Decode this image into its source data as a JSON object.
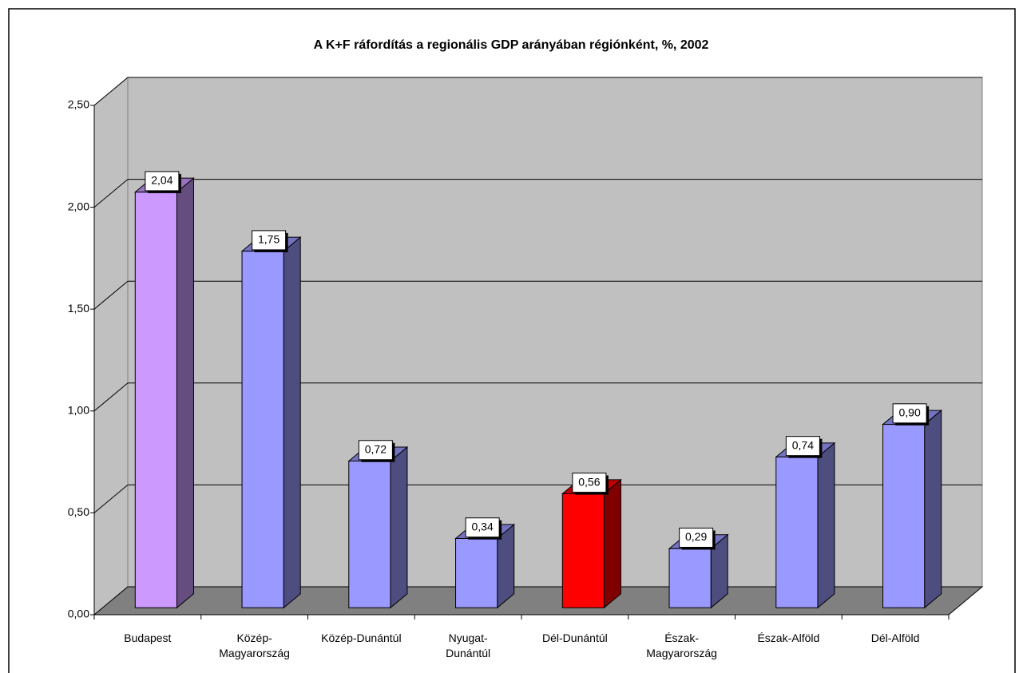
{
  "chart_data": {
    "type": "bar3d",
    "title": "A K+F ráfordítás a regionális GDP arányában régiónként, %, 2002",
    "categories": [
      "Budapest",
      "Közép-\nMagyarország",
      "Közép-Dunántúl",
      "Nyugat-\nDunántúl",
      "Dél-Dunántúl",
      "Észak-\nMagyarország",
      "Észak-Alföld",
      "Dél-Alföld"
    ],
    "values": [
      2.04,
      1.75,
      0.72,
      0.34,
      0.56,
      0.29,
      0.74,
      0.9
    ],
    "value_labels": [
      "2,04",
      "1,75",
      "0,72",
      "0,34",
      "0,56",
      "0,29",
      "0,74",
      "0,90"
    ],
    "colors": [
      "#cc99ff",
      "#9999ff",
      "#9999ff",
      "#9999ff",
      "#ff0000",
      "#9999ff",
      "#9999ff",
      "#9999ff"
    ],
    "ylim": [
      0,
      2.5
    ],
    "yticks": [
      {
        "value": 0,
        "label": "0,00"
      },
      {
        "value": 0.5,
        "label": "0,50"
      },
      {
        "value": 1,
        "label": "1,00"
      },
      {
        "value": 1.5,
        "label": "1,50"
      },
      {
        "value": 2,
        "label": "2,00"
      },
      {
        "value": 2.5,
        "label": "2,50"
      }
    ],
    "grid": true
  }
}
